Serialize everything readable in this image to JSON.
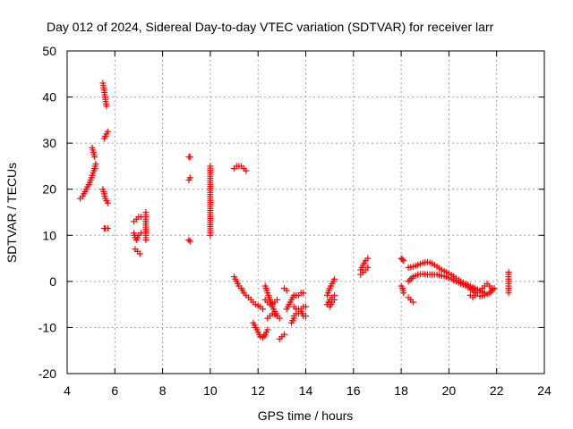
{
  "chart_data": {
    "type": "scatter",
    "title": "Day 012 of 2024, Sidereal Day-to-day VTEC variation (SDTVAR) for receiver larr",
    "xlabel": "GPS time / hours",
    "ylabel": "SDTVAR / TECUs",
    "xlim": [
      4,
      24
    ],
    "ylim": [
      -20,
      50
    ],
    "xticks": [
      4,
      6,
      8,
      10,
      12,
      14,
      16,
      18,
      20,
      22,
      24
    ],
    "yticks": [
      -20,
      -10,
      0,
      10,
      20,
      30,
      40,
      50
    ],
    "xtick_labels": [
      "4",
      "6",
      "8",
      "10",
      "12",
      "14",
      "16",
      "18",
      "20",
      "22",
      "24"
    ],
    "ytick_labels": [
      "-20",
      "-10",
      "0",
      "10",
      "20",
      "30",
      "40",
      "50"
    ],
    "grid": true,
    "marker": "+",
    "marker_color": "#ff0000",
    "series": [
      {
        "name": "SDTVAR",
        "segments": [
          [
            [
              4.55,
              18
            ],
            [
              4.65,
              18.5
            ],
            [
              4.75,
              19.5
            ],
            [
              4.85,
              20.5
            ],
            [
              4.95,
              21.5
            ],
            [
              5.05,
              23
            ],
            [
              5.15,
              24.5
            ],
            [
              5.2,
              25.5
            ]
          ],
          [
            [
              5.05,
              29
            ],
            [
              5.1,
              28
            ],
            [
              5.15,
              27
            ]
          ],
          [
            [
              5.5,
              43
            ],
            [
              5.53,
              42
            ],
            [
              5.56,
              41
            ],
            [
              5.6,
              39.5
            ],
            [
              5.65,
              38
            ]
          ],
          [
            [
              5.55,
              31
            ],
            [
              5.6,
              31.5
            ],
            [
              5.65,
              32
            ],
            [
              5.7,
              32.5
            ]
          ],
          [
            [
              5.5,
              20
            ],
            [
              5.55,
              19
            ],
            [
              5.6,
              18
            ],
            [
              5.65,
              17.5
            ],
            [
              5.7,
              17
            ]
          ],
          [
            [
              5.55,
              11.5
            ],
            [
              5.6,
              11.5
            ],
            [
              5.7,
              11.5
            ]
          ],
          [
            [
              6.8,
              13
            ],
            [
              6.9,
              13.5
            ],
            [
              7.0,
              14
            ],
            [
              7.1,
              14
            ]
          ],
          [
            [
              6.8,
              10.5
            ],
            [
              6.85,
              9.5
            ],
            [
              6.9,
              9
            ],
            [
              7.0,
              10
            ],
            [
              7.1,
              10.5
            ]
          ],
          [
            [
              6.85,
              7
            ],
            [
              6.95,
              6.5
            ],
            [
              7.05,
              6
            ]
          ],
          [
            [
              7.3,
              15
            ],
            [
              7.3,
              13.5
            ],
            [
              7.3,
              10.5
            ],
            [
              7.3,
              9
            ]
          ],
          [
            [
              9.1,
              27
            ],
            [
              9.15,
              27
            ]
          ],
          [
            [
              9.1,
              22
            ],
            [
              9.15,
              22.5
            ]
          ],
          [
            [
              9.1,
              9
            ],
            [
              9.15,
              8.7
            ]
          ],
          [
            [
              10.0,
              25
            ],
            [
              10.0,
              11
            ],
            [
              10.0,
              10
            ]
          ],
          [
            [
              11.0,
              24.5
            ],
            [
              11.1,
              25
            ],
            [
              11.2,
              25
            ],
            [
              11.3,
              25
            ],
            [
              11.4,
              24.5
            ],
            [
              11.5,
              24
            ]
          ],
          [
            [
              11.0,
              1
            ],
            [
              11.1,
              0
            ],
            [
              11.2,
              -1
            ],
            [
              11.3,
              -1.5
            ],
            [
              11.4,
              -2.5
            ],
            [
              11.5,
              -3
            ],
            [
              11.6,
              -3.5
            ],
            [
              11.7,
              -4
            ],
            [
              11.8,
              -4.5
            ],
            [
              11.9,
              -5
            ],
            [
              12.0,
              -5.3
            ],
            [
              12.1,
              -5.5
            ],
            [
              12.2,
              -6
            ]
          ],
          [
            [
              11.8,
              -9
            ],
            [
              11.9,
              -10
            ],
            [
              12.0,
              -11
            ],
            [
              12.1,
              -12
            ],
            [
              12.2,
              -12.2
            ],
            [
              12.3,
              -11.5
            ],
            [
              12.4,
              -10.5
            ]
          ],
          [
            [
              12.3,
              -4
            ],
            [
              12.4,
              -4.5
            ],
            [
              12.5,
              -5
            ],
            [
              12.6,
              -4.8
            ],
            [
              12.7,
              -4.5
            ],
            [
              12.8,
              -4
            ]
          ],
          [
            [
              12.3,
              -1
            ],
            [
              12.4,
              -2.5
            ],
            [
              12.5,
              -4
            ],
            [
              12.6,
              -5.5
            ],
            [
              12.7,
              -6.5
            ],
            [
              12.8,
              -7.5
            ],
            [
              12.9,
              -8
            ]
          ],
          [
            [
              12.4,
              -8
            ],
            [
              12.5,
              -7.5
            ],
            [
              12.6,
              -7
            ],
            [
              12.7,
              -7.2
            ],
            [
              12.8,
              -7.5
            ]
          ],
          [
            [
              12.9,
              -12.5
            ],
            [
              13.0,
              -12
            ],
            [
              13.1,
              -11.5
            ]
          ],
          [
            [
              13.1,
              -1.5
            ],
            [
              13.2,
              -2
            ]
          ],
          [
            [
              13.2,
              -6
            ],
            [
              13.3,
              -5
            ],
            [
              13.4,
              -4
            ],
            [
              13.5,
              -3
            ],
            [
              13.6,
              -3
            ],
            [
              13.7,
              -3
            ],
            [
              13.8,
              -2.5
            ],
            [
              13.9,
              -2.5
            ]
          ],
          [
            [
              13.5,
              -5.5
            ],
            [
              13.6,
              -6
            ],
            [
              13.7,
              -6
            ],
            [
              13.8,
              -6
            ],
            [
              13.9,
              -5.5
            ],
            [
              14.0,
              -5.5
            ]
          ],
          [
            [
              13.5,
              -7.5
            ],
            [
              13.6,
              -7
            ],
            [
              13.7,
              -7
            ],
            [
              13.8,
              -6.5
            ],
            [
              13.9,
              -7.5
            ],
            [
              14.0,
              -7.5
            ]
          ],
          [
            [
              13.4,
              -9
            ],
            [
              13.5,
              -8
            ]
          ],
          [
            [
              14.9,
              -3
            ],
            [
              15.0,
              -1.5
            ],
            [
              15.1,
              -0.5
            ],
            [
              15.2,
              0.5
            ]
          ],
          [
            [
              14.9,
              -5
            ],
            [
              15.0,
              -4
            ],
            [
              15.1,
              -3.5
            ],
            [
              15.2,
              -3
            ]
          ],
          [
            [
              15.0,
              -5.5
            ],
            [
              15.1,
              -4.5
            ],
            [
              15.2,
              -4
            ]
          ],
          [
            [
              16.3,
              2.5
            ],
            [
              16.4,
              3.5
            ],
            [
              16.5,
              4.5
            ],
            [
              16.6,
              5
            ]
          ],
          [
            [
              16.3,
              1.5
            ],
            [
              16.4,
              2
            ],
            [
              16.5,
              2.5
            ],
            [
              16.6,
              3
            ]
          ],
          [
            [
              18.0,
              5
            ],
            [
              18.05,
              4.8
            ],
            [
              18.1,
              4.5
            ]
          ],
          [
            [
              18.0,
              -1
            ],
            [
              18.05,
              -1.5
            ],
            [
              18.1,
              -2.5
            ]
          ],
          [
            [
              18.3,
              -3.5
            ],
            [
              18.4,
              -4
            ],
            [
              18.5,
              -4.5
            ]
          ],
          [
            [
              18.3,
              3
            ],
            [
              18.5,
              3.2
            ],
            [
              18.7,
              3.6
            ],
            [
              18.9,
              4
            ],
            [
              19.1,
              4.2
            ],
            [
              19.3,
              3.9
            ],
            [
              19.5,
              3.2
            ],
            [
              19.7,
              2.5
            ],
            [
              19.9,
              2
            ],
            [
              20.1,
              1.4
            ],
            [
              20.3,
              0.7
            ],
            [
              20.5,
              0
            ],
            [
              20.7,
              -0.5
            ],
            [
              20.9,
              -1
            ],
            [
              21.1,
              -1.5
            ],
            [
              21.3,
              -2
            ],
            [
              21.5,
              -2.5
            ]
          ],
          [
            [
              18.3,
              0
            ],
            [
              18.5,
              1
            ],
            [
              18.7,
              1.5
            ],
            [
              18.9,
              1.6
            ],
            [
              19.1,
              1.5
            ],
            [
              19.3,
              1.5
            ],
            [
              19.5,
              1.5
            ],
            [
              19.7,
              1.2
            ],
            [
              19.9,
              1
            ],
            [
              20.1,
              0.5
            ],
            [
              20.3,
              0
            ],
            [
              20.5,
              -0.5
            ],
            [
              20.7,
              -1
            ],
            [
              20.9,
              -1.5
            ],
            [
              21.1,
              -2.5
            ]
          ],
          [
            [
              20.9,
              -3
            ],
            [
              21.0,
              -3.5
            ],
            [
              21.1,
              -3
            ],
            [
              21.2,
              -2.5
            ],
            [
              21.3,
              -2
            ],
            [
              21.4,
              -1.5
            ],
            [
              21.5,
              -1
            ],
            [
              21.6,
              -0.5
            ],
            [
              21.7,
              -1
            ],
            [
              21.8,
              -1.5
            ]
          ],
          [
            [
              21.3,
              -3.2
            ],
            [
              21.5,
              -3
            ],
            [
              21.7,
              -2.5
            ],
            [
              21.9,
              -1.5
            ]
          ],
          [
            [
              22.5,
              2
            ],
            [
              22.5,
              1
            ],
            [
              22.5,
              -0.5
            ],
            [
              22.5,
              -1.5
            ],
            [
              22.5,
              -2.5
            ]
          ]
        ]
      }
    ]
  }
}
